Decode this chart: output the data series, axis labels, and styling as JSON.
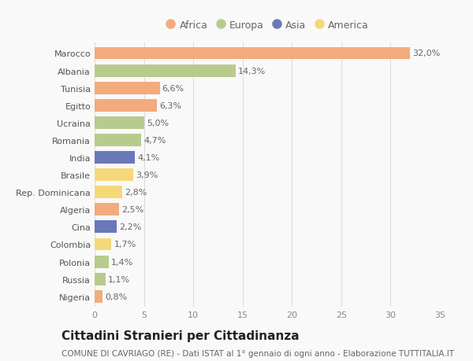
{
  "countries": [
    "Marocco",
    "Albania",
    "Tunisia",
    "Egitto",
    "Ucraina",
    "Romania",
    "India",
    "Brasile",
    "Rep. Dominicana",
    "Algeria",
    "Cina",
    "Colombia",
    "Polonia",
    "Russia",
    "Nigeria"
  ],
  "values": [
    32.0,
    14.3,
    6.6,
    6.3,
    5.0,
    4.7,
    4.1,
    3.9,
    2.8,
    2.5,
    2.2,
    1.7,
    1.4,
    1.1,
    0.8
  ],
  "labels": [
    "32,0%",
    "14,3%",
    "6,6%",
    "6,3%",
    "5,0%",
    "4,7%",
    "4,1%",
    "3,9%",
    "2,8%",
    "2,5%",
    "2,2%",
    "1,7%",
    "1,4%",
    "1,1%",
    "0,8%"
  ],
  "continents": [
    "Africa",
    "Europa",
    "Africa",
    "Africa",
    "Europa",
    "Europa",
    "Asia",
    "America",
    "America",
    "Africa",
    "Asia",
    "America",
    "Europa",
    "Europa",
    "Africa"
  ],
  "continent_colors": {
    "Africa": "#f2ab7c",
    "Europa": "#b8cb8e",
    "Asia": "#6878b8",
    "America": "#f5d87a"
  },
  "legend_order": [
    "Africa",
    "Europa",
    "Asia",
    "America"
  ],
  "xlim": [
    0,
    35
  ],
  "xticks": [
    0,
    5,
    10,
    15,
    20,
    25,
    30,
    35
  ],
  "title": "Cittadini Stranieri per Cittadinanza",
  "subtitle": "COMUNE DI CAVRIAGO (RE) - Dati ISTAT al 1° gennaio di ogni anno - Elaborazione TUTTITALIA.IT",
  "background_color": "#f9f9f9",
  "bar_height": 0.72,
  "grid_color": "#dddddd",
  "title_fontsize": 11,
  "subtitle_fontsize": 7.5,
  "label_fontsize": 8,
  "tick_fontsize": 8,
  "legend_fontsize": 9
}
